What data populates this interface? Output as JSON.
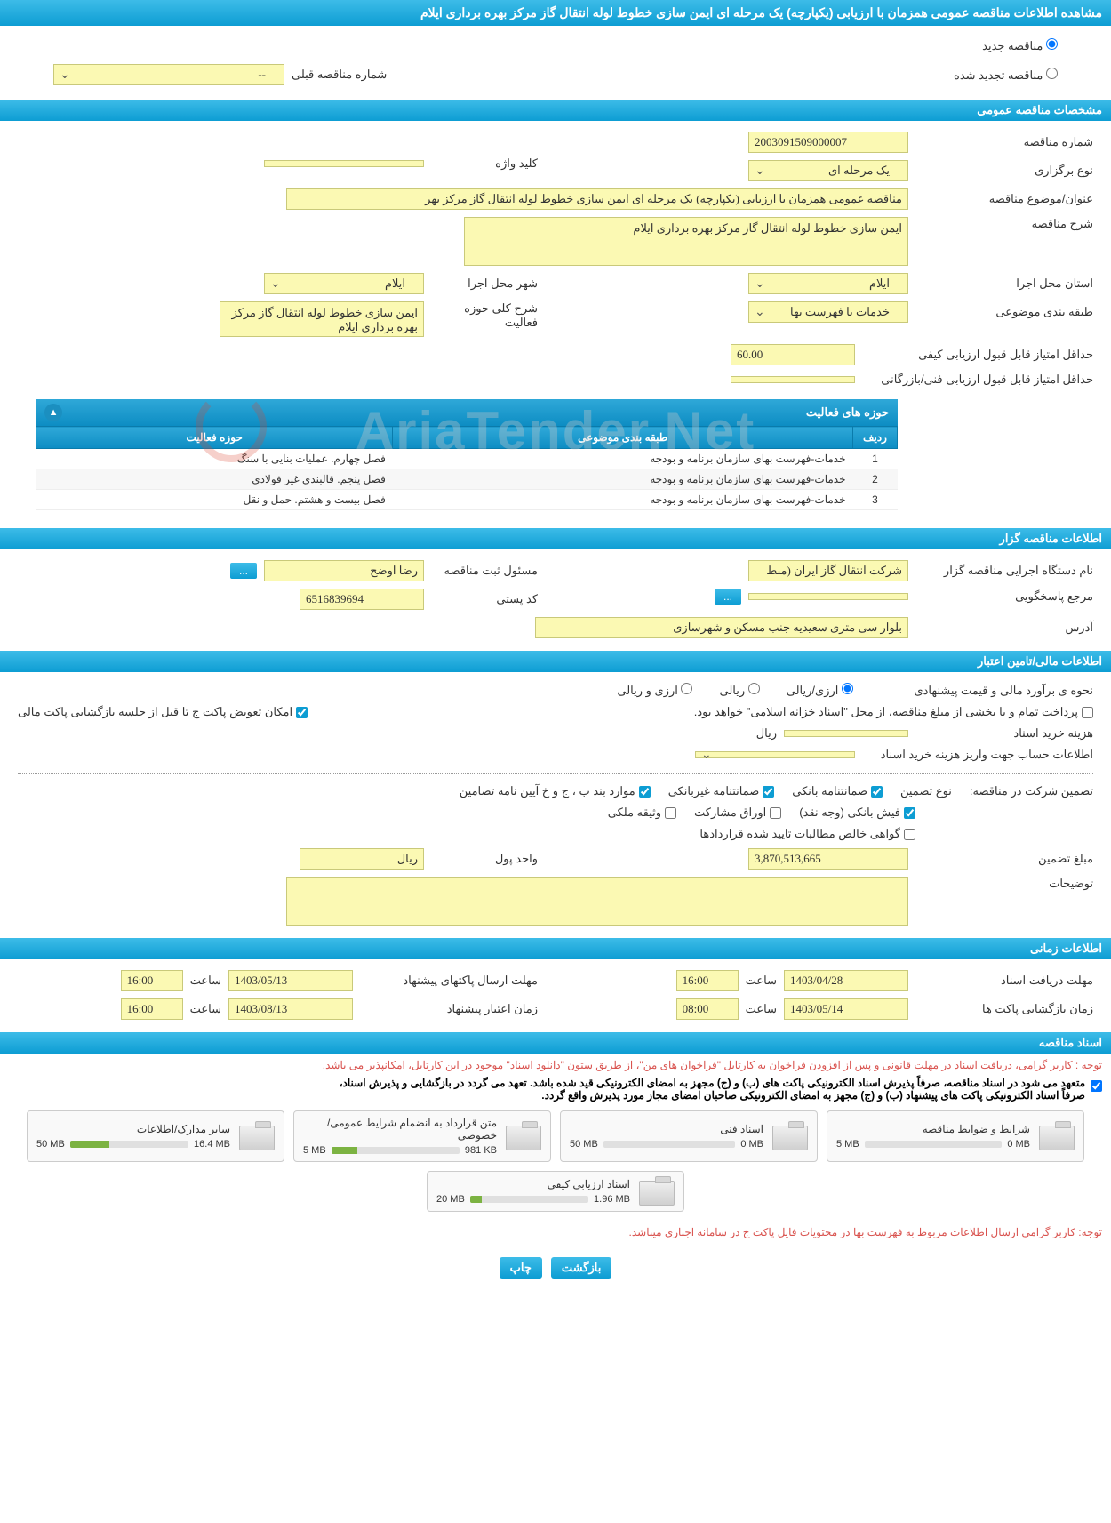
{
  "header": {
    "title": "مشاهده اطلاعات مناقصه عمومی همزمان با ارزیابی (یکپارچه) یک مرحله ای ایمن سازی خطوط لوله انتقال گاز مرکز بهره برداری ایلام"
  },
  "tender_type": {
    "new_label": "مناقصه جدید",
    "renewed_label": "مناقصه تجدید شده",
    "prev_number_label": "شماره مناقصه قبلی",
    "prev_number_value": "--"
  },
  "sections": {
    "general": "مشخصات مناقصه عمومی",
    "organizer": "اطلاعات مناقصه گزار",
    "financial": "اطلاعات مالی/تامین اعتبار",
    "timing": "اطلاعات زمانی",
    "documents": "اسناد مناقصه"
  },
  "general": {
    "tender_number_label": "شماره مناقصه",
    "tender_number": "2003091509000007",
    "hold_type_label": "نوع برگزاری",
    "hold_type": "یک مرحله ای",
    "keyword_label": "کلید واژه",
    "keyword": "",
    "subject_label": "عنوان/موضوع مناقصه",
    "subject": "مناقصه عمومی همزمان با ارزیابی (یکپارچه) یک مرحله ای ایمن سازی خطوط لوله انتقال گاز مرکز بهر",
    "description_label": "شرح مناقصه",
    "description": "ایمن سازی خطوط لوله انتقال گاز مرکز بهره برداری ایلام",
    "province_label": "استان محل اجرا",
    "province": "ایلام",
    "city_label": "شهر محل اجرا",
    "city": "ایلام",
    "classification_label": "طبقه بندی موضوعی",
    "classification": "خدمات با فهرست بها",
    "activity_scope_label": "شرح کلی حوزه فعالیت",
    "activity_scope": "ایمن سازی خطوط لوله انتقال گاز مرکز بهره برداری ایلام",
    "min_quality_score_label": "حداقل امتیاز قابل قبول ارزیابی کیفی",
    "min_quality_score": "60.00",
    "min_tech_score_label": "حداقل امتیاز قابل قبول ارزیابی فنی/بازرگانی",
    "min_tech_score": ""
  },
  "activities": {
    "panel_title": "حوزه های فعالیت",
    "col_idx": "ردیف",
    "col_class": "طبقه بندی موضوعی",
    "col_scope": "حوزه فعالیت",
    "rows": [
      {
        "idx": "1",
        "cls": "خدمات-فهرست بهای سازمان برنامه و بودجه",
        "scope": "فصل چهارم. عملیات بنایی با سنگ"
      },
      {
        "idx": "2",
        "cls": "خدمات-فهرست بهای سازمان برنامه و بودجه",
        "scope": "فصل پنجم. قالبندی غیر فولادی"
      },
      {
        "idx": "3",
        "cls": "خدمات-فهرست بهای سازمان برنامه و بودجه",
        "scope": "فصل بیست و هشتم. حمل و نقل"
      }
    ]
  },
  "organizer": {
    "agency_label": "نام دستگاه اجرایی مناقصه گزار",
    "agency": "شرکت انتقال گاز ایران (منط",
    "responsible_label": "مسئول ثبت مناقصه",
    "responsible": "رضا اوضح",
    "details_btn": "...",
    "contact_label": "مرجع پاسخگویی",
    "contact": "",
    "postal_label": "کد پستی",
    "postal": "6516839694",
    "address_label": "آدرس",
    "address": "بلوار سی متری سعیدیه جنب مسکن و شهرسازی"
  },
  "financial": {
    "estimate_label": "نحوه ی برآورد مالی و قیمت پیشنهادی",
    "currency_rial": "ریالی",
    "currency_both": "ارزی/ریالی",
    "currency_foreign": "ارزی و ریالی",
    "payment_note": "پرداخت تمام و یا بخشی از مبلغ مناقصه، از محل \"اسناد خزانه اسلامی\" خواهد بود.",
    "replace_envelope": "امکان تعویض پاکت ج تا قبل از جلسه بازگشایی پاکت مالی",
    "purchase_cost_label": "هزینه خرید اسناد",
    "purchase_cost": "",
    "rial_unit": "ریال",
    "account_info_label": "اطلاعات حساب جهت واریز هزینه خرید اسناد",
    "account_info": "",
    "guarantee_label": "تضمین شرکت در مناقصه:",
    "guarantee_type_label": "نوع تضمین",
    "g_bank": "ضمانتنامه بانکی",
    "g_nonbank": "ضمانتنامه غیربانکی",
    "g_items": "موارد بند ب ، ج و خ آیین نامه تضامین",
    "g_cash": "فیش بانکی (وجه نقد)",
    "g_participation": "اوراق مشارکت",
    "g_property": "وثیقه ملکی",
    "g_receivables": "گواهی خالص مطالبات تایید شده قراردادها",
    "guarantee_amount_label": "مبلغ تضمین",
    "guarantee_amount": "3,870,513,665",
    "unit_label": "واحد پول",
    "unit_value": "ریال",
    "notes_label": "توضیحات",
    "notes": ""
  },
  "timing": {
    "doc_deadline_label": "مهلت دریافت اسناد",
    "doc_deadline_date": "1403/04/28",
    "doc_deadline_time": "16:00",
    "bid_deadline_label": "مهلت ارسال پاکتهای پیشنهاد",
    "bid_deadline_date": "1403/05/13",
    "bid_deadline_time": "16:00",
    "open_label": "زمان بازگشایی پاکت ها",
    "open_date": "1403/05/14",
    "open_time": "08:00",
    "validity_label": "زمان اعتبار پیشنهاد",
    "validity_date": "1403/08/13",
    "validity_time": "16:00",
    "time_label": "ساعت"
  },
  "documents": {
    "notice1": "توجه : کاربر گرامی، دریافت اسناد در مهلت قانونی و پس از افزودن فراخوان به کارتابل \"فراخوان های من\"، از طریق ستون \"دانلود اسناد\" موجود در این کارتابل، امکانپذیر می باشد.",
    "notice2a": "متعهد می شود در اسناد مناقصه، صرفاً پذیرش اسناد الکترونیکی پاکت های (ب) و (ج) مجهز به امضای الکترونیکی قید شده باشد. تعهد می گردد در بازگشایی و پذیرش اسناد،",
    "notice2b": "صرفاً اسناد الکترونیکی پاکت های پیشنهاد (ب) و (ج) مجهز به امضای الکترونیکی صاحبان امضای مجاز مورد پذیرش واقع گردد.",
    "items": [
      {
        "title": "شرایط و ضوابط مناقصه",
        "used": "0 MB",
        "total": "5 MB",
        "pct": 0
      },
      {
        "title": "اسناد فنی",
        "used": "0 MB",
        "total": "50 MB",
        "pct": 0
      },
      {
        "title": "متن قرارداد به انضمام شرایط عمومی/خصوصی",
        "used": "981 KB",
        "total": "5 MB",
        "pct": 20
      },
      {
        "title": "سایر مدارک/اطلاعات",
        "used": "16.4 MB",
        "total": "50 MB",
        "pct": 33
      },
      {
        "title": "اسناد ارزیابی کیفی",
        "used": "1.96 MB",
        "total": "20 MB",
        "pct": 10
      }
    ],
    "footer_notice": "توجه: کاربر گرامی ارسال اطلاعات مربوط به فهرست بها در محتویات فایل پاکت ج در سامانه اجباری میباشد."
  },
  "buttons": {
    "print": "چاپ",
    "back": "بازگشت"
  },
  "watermark": "AriaTender.Net"
}
